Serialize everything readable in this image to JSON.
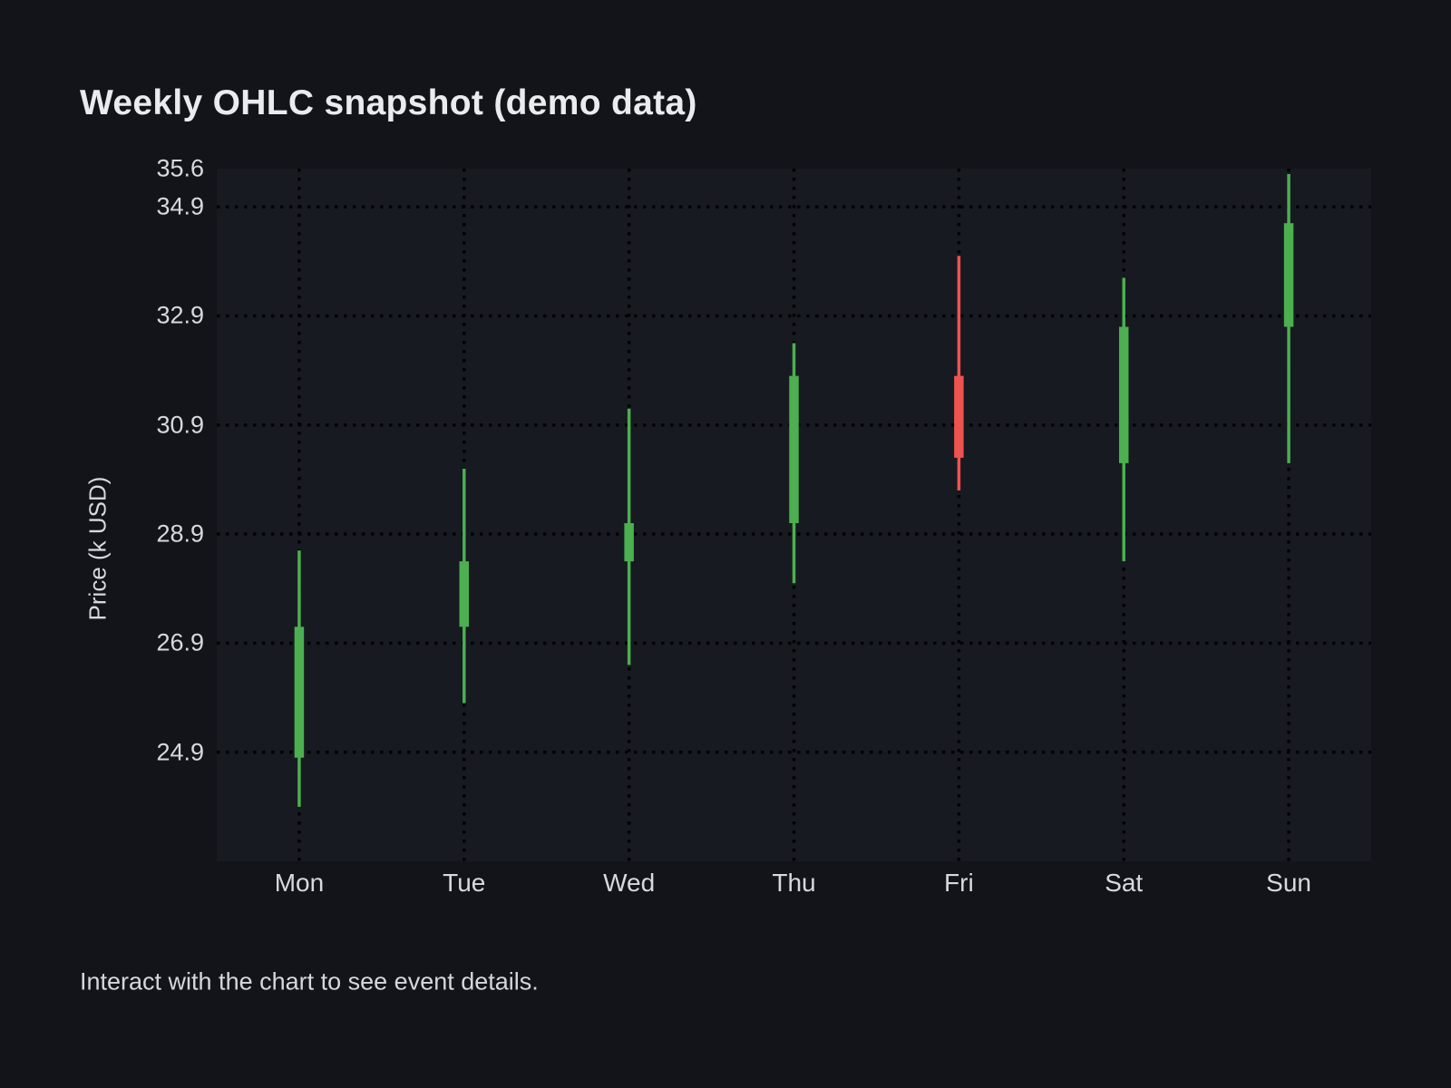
{
  "chart": {
    "title": "Weekly OHLC snapshot (demo data)",
    "ylabel": "Price (k USD)"
  },
  "footer": {
    "hint": "Interact with the chart to see event details."
  },
  "chart_data": {
    "type": "candlestick",
    "title": "Weekly OHLC snapshot (demo data)",
    "xlabel": "",
    "ylabel": "Price (k USD)",
    "categories": [
      "Mon",
      "Tue",
      "Wed",
      "Thu",
      "Fri",
      "Sat",
      "Sun"
    ],
    "series": [
      {
        "name": "OHLC",
        "points": [
          {
            "day": "Mon",
            "open": 24.8,
            "high": 28.6,
            "low": 23.9,
            "close": 27.2,
            "direction": "up"
          },
          {
            "day": "Tue",
            "open": 27.2,
            "high": 30.1,
            "low": 25.8,
            "close": 28.4,
            "direction": "up"
          },
          {
            "day": "Wed",
            "open": 28.4,
            "high": 31.2,
            "low": 26.5,
            "close": 29.1,
            "direction": "up"
          },
          {
            "day": "Thu",
            "open": 29.1,
            "high": 32.4,
            "low": 28.0,
            "close": 31.8,
            "direction": "up"
          },
          {
            "day": "Fri",
            "open": 31.8,
            "high": 34.0,
            "low": 29.7,
            "close": 30.3,
            "direction": "down"
          },
          {
            "day": "Sat",
            "open": 30.2,
            "high": 33.6,
            "low": 28.4,
            "close": 32.7,
            "direction": "up"
          },
          {
            "day": "Sun",
            "open": 32.7,
            "high": 35.5,
            "low": 30.2,
            "close": 34.6,
            "direction": "up"
          }
        ]
      }
    ],
    "ylim": [
      22.9,
      35.6
    ],
    "y_ticks": [
      {
        "label": "35.6",
        "value": 35.6,
        "gridline": false
      },
      {
        "label": "34.9",
        "value": 34.9,
        "gridline": true
      },
      {
        "label": "32.9",
        "value": 32.9,
        "gridline": true
      },
      {
        "label": "30.9",
        "value": 30.9,
        "gridline": true
      },
      {
        "label": "28.9",
        "value": 28.9,
        "gridline": true
      },
      {
        "label": "26.9",
        "value": 26.9,
        "gridline": true
      },
      {
        "label": "24.9",
        "value": 24.9,
        "gridline": true
      }
    ],
    "grid": "dotted",
    "legend_position": "none",
    "colors": {
      "up": "#4caf50",
      "down": "#ef5350",
      "grid": "#000000",
      "plot_bg": "#171a20",
      "page_bg": "#121419",
      "text": "#d6d9de",
      "title_text": "#e9ebef"
    }
  }
}
